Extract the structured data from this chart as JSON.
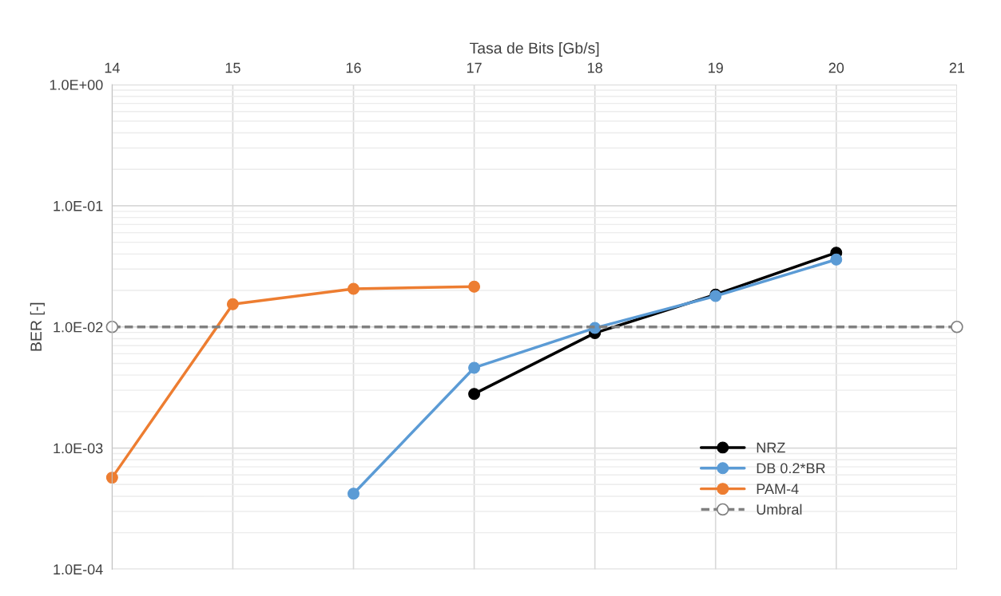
{
  "chart_data": {
    "type": "line",
    "xlabel": "Tasa de Bits [Gb/s]",
    "ylabel": "BER [-]",
    "xlim": [
      14,
      21
    ],
    "xticks": [
      14,
      15,
      16,
      17,
      18,
      19,
      20,
      21
    ],
    "ylim": [
      0.0001,
      1
    ],
    "log": "y",
    "yticks": [
      {
        "value": 0.0001,
        "label": "1.0E-04"
      },
      {
        "value": 0.001,
        "label": "1.0E-03"
      },
      {
        "value": 0.01,
        "label": "1.0E-02"
      },
      {
        "value": 0.1,
        "label": "1.0E-01"
      },
      {
        "value": 1,
        "label": "1.0E+00"
      }
    ],
    "grid": true,
    "legend": "lower right",
    "marker": "circle",
    "series": [
      {
        "name": "NRZ",
        "color": "#000000",
        "x": [
          17,
          18,
          19,
          20
        ],
        "values": [
          0.0028,
          0.0089,
          0.0185,
          0.041
        ]
      },
      {
        "name": "DB 0.2*BR",
        "color": "#5b9bd5",
        "x": [
          16,
          17,
          18,
          19,
          20
        ],
        "values": [
          0.00042,
          0.0046,
          0.0098,
          0.018,
          0.036
        ]
      },
      {
        "name": "PAM-4",
        "color": "#ed7d31",
        "x": [
          14,
          15,
          16,
          17
        ],
        "values": [
          0.00057,
          0.0154,
          0.0206,
          0.0215
        ]
      },
      {
        "name": "Umbral",
        "color": "#808080",
        "x": [
          14,
          21
        ],
        "values": [
          0.01,
          0.01
        ],
        "line_style": "dashed",
        "marker": "circle_open"
      }
    ]
  }
}
